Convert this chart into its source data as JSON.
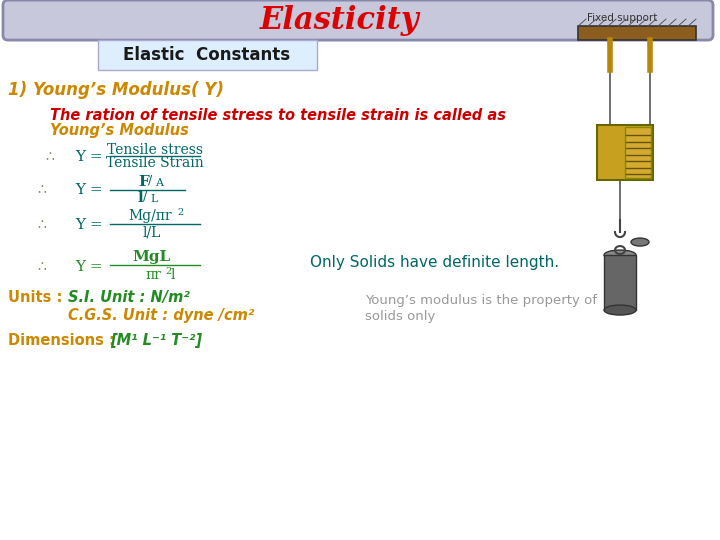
{
  "bg_color": "#ffffff",
  "title_text": "Elasticity",
  "title_color": "#dd0000",
  "title_bg": "#c8c8dc",
  "title_border": "#8888aa",
  "fixed_support_text": "Fixed support",
  "elastic_constants_text": "Elastic  Constants",
  "elastic_constants_color": "#1a1a1a",
  "elastic_constants_bg": "#ddeeff",
  "section1_label": "1) Young’s Modulus( Y)",
  "section1_color": "#cc8800",
  "desc_line1": "The ration of tensile stress to tensile strain is called as",
  "desc_line2": "Young’s Modulus",
  "desc_color1": "#cc0000",
  "desc_color2": "#cc8800",
  "therefore_color": "#888855",
  "formula_color": "#006666",
  "formula4_color": "#228B22",
  "units_label_color": "#cc8800",
  "units_label": "Units :",
  "si_unit": "S.I. Unit : N/m²",
  "si_color": "#228B22",
  "cgs_unit": "C.G.S. Unit : dyne /cm²",
  "cgs_color": "#cc8800",
  "dim_label": "Dimensions :",
  "dim_value": "[M¹ L⁻¹ T⁻²]",
  "dim_color": "#228B22",
  "only_solids": "Only Solids have definite length.",
  "only_solids_color": "#006666",
  "property_line1": "Young’s modulus is the property of",
  "property_line2": "solids only",
  "property_color": "#999999"
}
